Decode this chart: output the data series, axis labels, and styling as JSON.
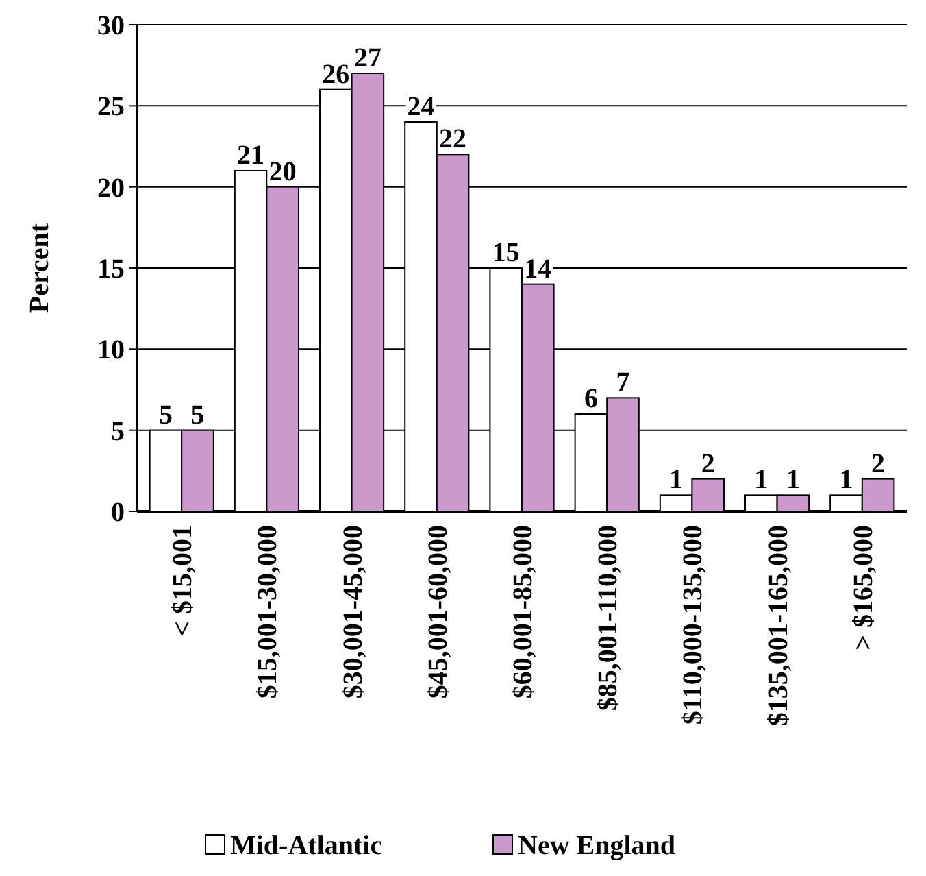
{
  "chart_data": {
    "type": "bar",
    "ylabel": "Percent",
    "categories": [
      "< $15,001",
      "$15,001-30,000",
      "$30,001-45,000",
      "$45,001-60,000",
      "$60,001-85,000",
      "$85,001-110,000",
      "$110,000-135,000",
      "$135,001-165,000",
      "> $165,000"
    ],
    "series": [
      {
        "name": "Mid-Atlantic",
        "color": "#ffffff",
        "values": [
          5,
          21,
          26,
          24,
          15,
          6,
          1,
          1,
          1
        ]
      },
      {
        "name": "New England",
        "color": "#cc99cc",
        "values": [
          5,
          20,
          27,
          22,
          14,
          7,
          2,
          1,
          2
        ]
      }
    ],
    "ylim": [
      0,
      30
    ],
    "yticks": [
      0,
      5,
      10,
      15,
      20,
      25,
      30
    ],
    "grid": "y",
    "legend": "bottom",
    "data_labels": true
  }
}
